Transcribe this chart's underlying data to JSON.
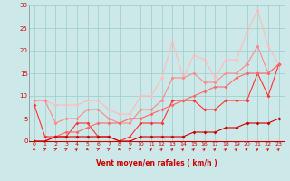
{
  "xlabel": "Vent moyen/en rafales ( km/h )",
  "bg_color": "#cce8e8",
  "grid_color": "#99cccc",
  "xlim": [
    -0.5,
    23.5
  ],
  "ylim": [
    0,
    30
  ],
  "xticks": [
    0,
    1,
    2,
    3,
    4,
    5,
    6,
    7,
    8,
    9,
    10,
    11,
    12,
    13,
    14,
    15,
    16,
    17,
    18,
    19,
    20,
    21,
    22,
    23
  ],
  "yticks": [
    0,
    5,
    10,
    15,
    20,
    25,
    30
  ],
  "lines": [
    {
      "x": [
        0,
        1,
        2,
        3,
        4,
        5,
        6,
        7,
        8,
        9,
        10,
        11,
        12,
        13,
        14,
        15,
        16,
        17,
        18,
        19,
        20,
        21,
        22,
        23
      ],
      "y": [
        9,
        9,
        8,
        8,
        8,
        9,
        9,
        7,
        6,
        6,
        10,
        10,
        14,
        22,
        14,
        19,
        18,
        14,
        18,
        18,
        24,
        29,
        21,
        17
      ],
      "color": "#ffbbbb",
      "lw": 0.8
    },
    {
      "x": [
        0,
        1,
        2,
        3,
        4,
        5,
        6,
        7,
        8,
        9,
        10,
        11,
        12,
        13,
        14,
        15,
        16,
        17,
        18,
        19,
        20,
        21,
        22,
        23
      ],
      "y": [
        9,
        9,
        4,
        5,
        5,
        7,
        7,
        5,
        4,
        4,
        7,
        7,
        9,
        14,
        14,
        15,
        13,
        13,
        15,
        15,
        17,
        21,
        15,
        17
      ],
      "color": "#ff8888",
      "lw": 0.8
    },
    {
      "x": [
        0,
        1,
        2,
        3,
        4,
        5,
        6,
        7,
        8,
        9,
        10,
        11,
        12,
        13,
        14,
        15,
        16,
        17,
        18,
        19,
        20,
        21,
        22,
        23
      ],
      "y": [
        8,
        1,
        1,
        1,
        4,
        4,
        1,
        1,
        0,
        1,
        4,
        4,
        4,
        9,
        9,
        9,
        7,
        7,
        9,
        9,
        9,
        15,
        10,
        17
      ],
      "color": "#ff3333",
      "lw": 0.8
    },
    {
      "x": [
        0,
        1,
        2,
        3,
        4,
        5,
        6,
        7,
        8,
        9,
        10,
        11,
        12,
        13,
        14,
        15,
        16,
        17,
        18,
        19,
        20,
        21,
        22,
        23
      ],
      "y": [
        0,
        0,
        1,
        2,
        2,
        3,
        4,
        4,
        4,
        5,
        5,
        6,
        7,
        8,
        9,
        10,
        11,
        12,
        12,
        14,
        15,
        15,
        15,
        17
      ],
      "color": "#ff6666",
      "lw": 0.8
    },
    {
      "x": [
        0,
        1,
        2,
        3,
        4,
        5,
        6,
        7,
        8,
        9,
        10,
        11,
        12,
        13,
        14,
        15,
        16,
        17,
        18,
        19,
        20,
        21,
        22,
        23
      ],
      "y": [
        0,
        0,
        1,
        1,
        1,
        1,
        1,
        1,
        0,
        0,
        1,
        1,
        1,
        1,
        1,
        2,
        2,
        2,
        3,
        3,
        4,
        4,
        4,
        5
      ],
      "color": "#cc0000",
      "lw": 0.8
    }
  ],
  "arrow_angles": [
    200,
    40,
    40,
    50,
    60,
    200,
    40,
    50,
    200,
    40,
    60,
    60,
    60,
    60,
    60,
    60,
    60,
    60,
    60,
    60,
    60,
    60,
    60,
    60
  ]
}
